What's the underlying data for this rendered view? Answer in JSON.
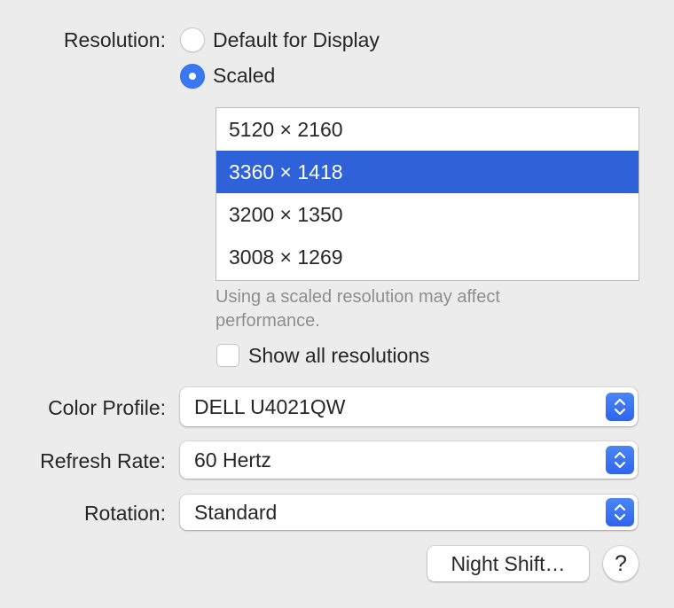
{
  "resolution": {
    "label": "Resolution:",
    "options": [
      {
        "label": "Default for Display",
        "selected": false
      },
      {
        "label": "Scaled",
        "selected": true
      }
    ],
    "list": [
      "5120 × 2160",
      "3360 × 1418",
      "3200 × 1350",
      "3008 × 1269"
    ],
    "selected_index": 1,
    "note": "Using a scaled resolution may affect performance.",
    "show_all": {
      "label": "Show all resolutions",
      "checked": false
    }
  },
  "color_profile": {
    "label": "Color Profile:",
    "value": "DELL U4021QW"
  },
  "refresh_rate": {
    "label": "Refresh Rate:",
    "value": "60 Hertz"
  },
  "rotation": {
    "label": "Rotation:",
    "value": "Standard"
  },
  "night_shift_label": "Night Shift…",
  "help_label": "?",
  "colors": {
    "accent": "#3a78f2",
    "selection": "#2f62d9",
    "background": "#ececec"
  }
}
